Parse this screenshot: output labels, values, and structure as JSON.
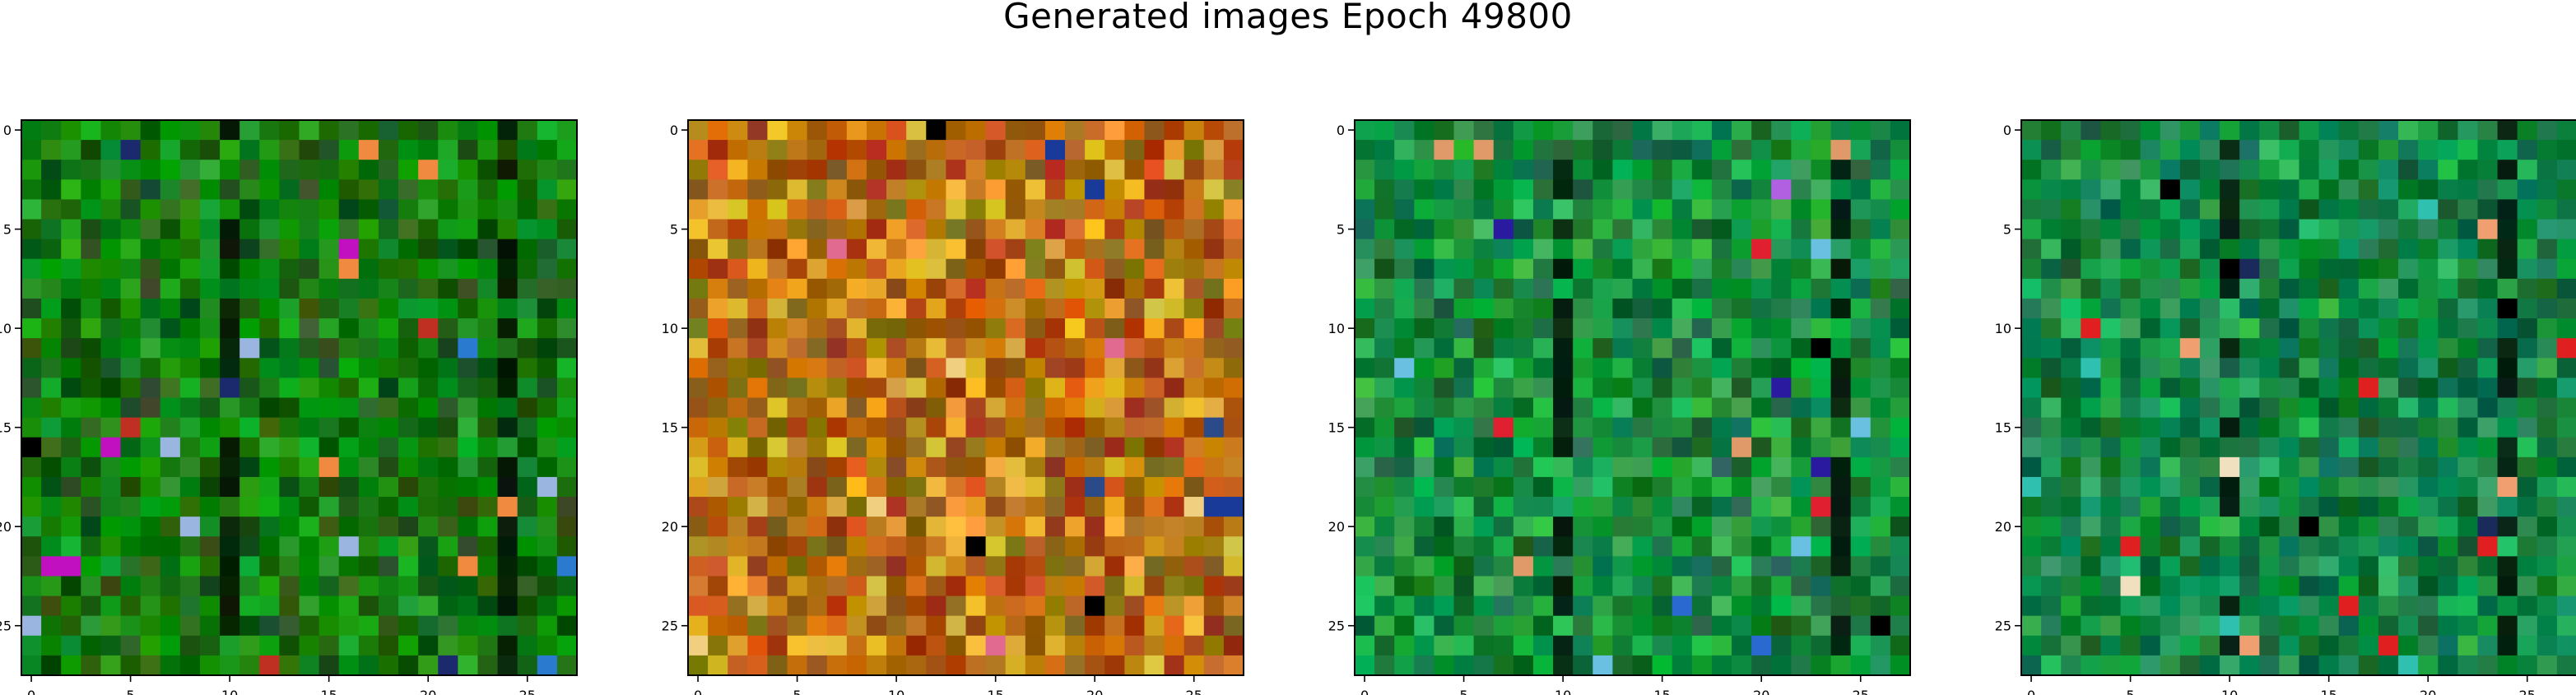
{
  "figure": {
    "title": "Generated images Epoch 49800"
  },
  "colors": {
    "background": "#ffffff",
    "axes": "#000000",
    "text": "#000000"
  },
  "chart_data": [
    {
      "type": "heatmap",
      "image_index": 1,
      "grid": false,
      "xlim": [
        -0.5,
        27.5
      ],
      "ylim": [
        27.5,
        -0.5
      ],
      "xticks": [
        0,
        5,
        10,
        15,
        20,
        25
      ],
      "yticks": [
        0,
        5,
        10,
        15,
        20,
        25
      ],
      "xtick_labels": [
        "0",
        "5",
        "10",
        "15",
        "20",
        "25"
      ],
      "ytick_labels": [
        "0",
        "5",
        "10",
        "15",
        "20",
        "25"
      ],
      "dominant_palette": [
        "#0f7a0c",
        "#0a5a08",
        "#1e9e22",
        "#2b5e1e",
        "#0c8a06"
      ],
      "accent_palette": [
        "#000000",
        "#1a2a6c",
        "#2a7ad0",
        "#c03022",
        "#f08a40",
        "#c010c0",
        "#9ab6e0"
      ]
    },
    {
      "type": "heatmap",
      "image_index": 2,
      "grid": false,
      "xlim": [
        -0.5,
        27.5
      ],
      "ylim": [
        27.5,
        -0.5
      ],
      "xticks": [
        0,
        5,
        10,
        15,
        20,
        25
      ],
      "yticks": [
        0,
        5,
        10,
        15,
        20,
        25
      ],
      "xtick_labels": [
        "0",
        "5",
        "10",
        "15",
        "20",
        "25"
      ],
      "ytick_labels": [
        "0",
        "5",
        "10",
        "15",
        "20",
        "25"
      ],
      "dominant_palette": [
        "#c08010",
        "#d06a1a",
        "#a04010",
        "#e8b030",
        "#8a6a10"
      ],
      "accent_palette": [
        "#000000",
        "#7a0a1a",
        "#2a4a8a",
        "#f0d080",
        "#e06a90",
        "#1a3a9a"
      ]
    },
    {
      "type": "heatmap",
      "image_index": 3,
      "grid": false,
      "xlim": [
        -0.5,
        27.5
      ],
      "ylim": [
        27.5,
        -0.5
      ],
      "xticks": [
        0,
        5,
        10,
        15,
        20,
        25
      ],
      "yticks": [
        0,
        5,
        10,
        15,
        20,
        25
      ],
      "xtick_labels": [
        "0",
        "5",
        "10",
        "15",
        "20",
        "25"
      ],
      "ytick_labels": [
        "0",
        "5",
        "10",
        "15",
        "20",
        "25"
      ],
      "dominant_palette": [
        "#0a8a3a",
        "#12a040",
        "#0a6a2a",
        "#1e7a4a",
        "#30b050"
      ],
      "accent_palette": [
        "#000000",
        "#2a1aa0",
        "#2a6ad0",
        "#e02030",
        "#e09a6a",
        "#b060e0",
        "#6ac0e0"
      ]
    },
    {
      "type": "heatmap",
      "image_index": 4,
      "grid": false,
      "xlim": [
        -0.5,
        27.5
      ],
      "ylim": [
        27.5,
        -0.5
      ],
      "xticks": [
        0,
        5,
        10,
        15,
        20,
        25
      ],
      "yticks": [
        0,
        5,
        10,
        15,
        20,
        25
      ],
      "xtick_labels": [
        "0",
        "5",
        "10",
        "15",
        "20",
        "25"
      ],
      "ytick_labels": [
        "0",
        "5",
        "10",
        "15",
        "20",
        "25"
      ],
      "dominant_palette": [
        "#0a7a3a",
        "#10904a",
        "#0a6a30",
        "#2aaa5a",
        "#1a8a50"
      ],
      "accent_palette": [
        "#000000",
        "#e02020",
        "#f0a070",
        "#f0e0c0",
        "#30c0b0",
        "#1a2a5a"
      ]
    }
  ]
}
